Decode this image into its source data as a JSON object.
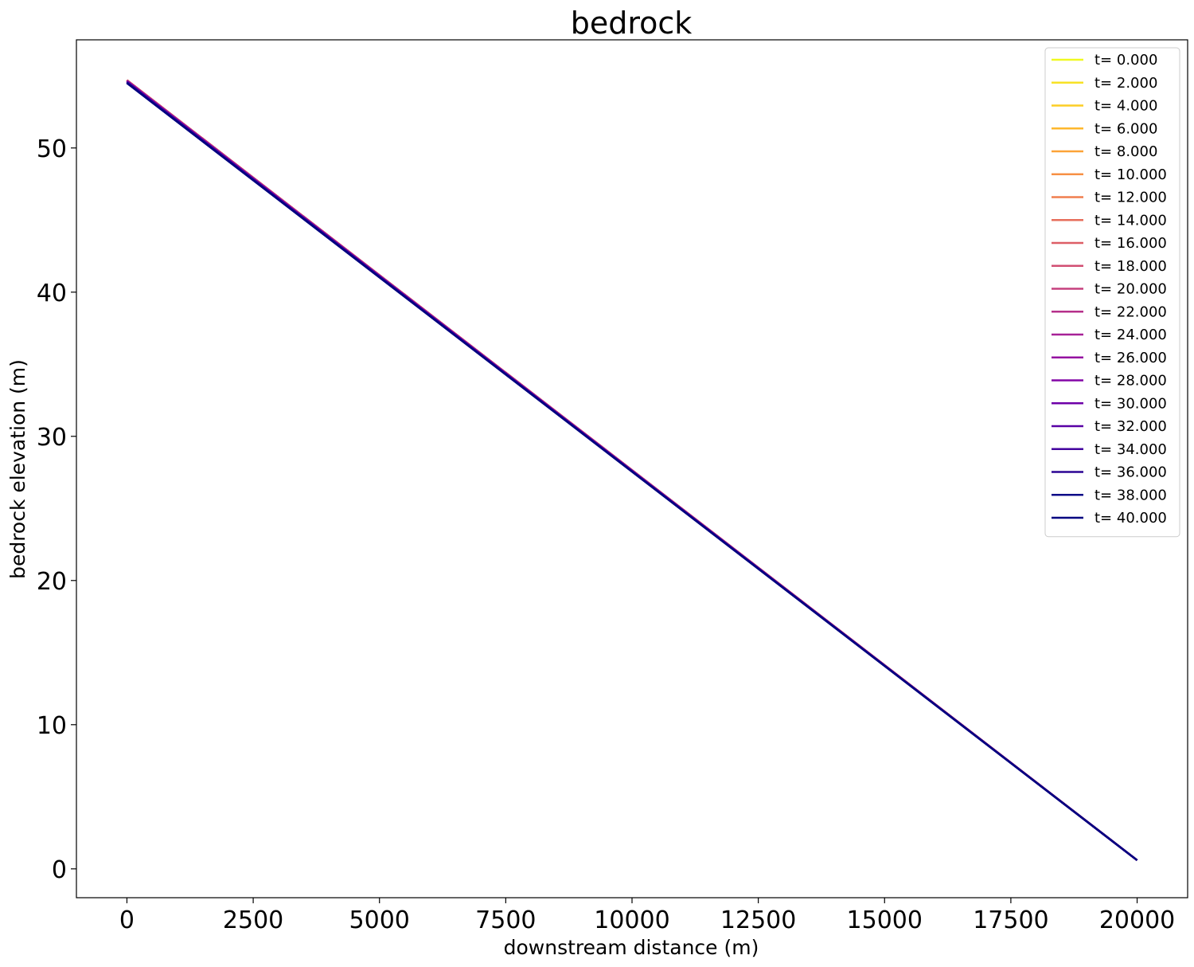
{
  "chart_data": {
    "type": "line",
    "title": "bedrock",
    "xlabel": "downstream distance (m)",
    "ylabel": "bedrock elevation (m)",
    "xlim": [
      -1000,
      21000
    ],
    "ylim": [
      -2,
      57.5
    ],
    "xticks": [
      0,
      2500,
      5000,
      7500,
      10000,
      12500,
      15000,
      17500,
      20000
    ],
    "xtick_labels": [
      "0",
      "2500",
      "5000",
      "7500",
      "10000",
      "12500",
      "15000",
      "17500",
      "20000"
    ],
    "yticks": [
      0,
      10,
      20,
      30,
      40,
      50
    ],
    "ytick_labels": [
      "0",
      "10",
      "20",
      "30",
      "40",
      "50"
    ],
    "grid": false,
    "legend_position": "top-right",
    "colormap": "plasma",
    "series": [
      {
        "name": "t= 0.000",
        "color": "#f0f921",
        "x": [
          0,
          20000
        ],
        "y": [
          54.7,
          0.6
        ]
      },
      {
        "name": "t= 2.000",
        "color": "#f7e225",
        "x": [
          0,
          20000
        ],
        "y": [
          54.7,
          0.6
        ]
      },
      {
        "name": "t= 4.000",
        "color": "#fccd25",
        "x": [
          0,
          20000
        ],
        "y": [
          54.7,
          0.6
        ]
      },
      {
        "name": "t= 6.000",
        "color": "#feb72d",
        "x": [
          0,
          20000
        ],
        "y": [
          54.7,
          0.6
        ]
      },
      {
        "name": "t= 8.000",
        "color": "#fca338",
        "x": [
          0,
          20000
        ],
        "y": [
          54.7,
          0.6
        ]
      },
      {
        "name": "t= 10.000",
        "color": "#f79044",
        "x": [
          0,
          20000
        ],
        "y": [
          54.7,
          0.6
        ]
      },
      {
        "name": "t= 12.000",
        "color": "#f07f4f",
        "x": [
          0,
          20000
        ],
        "y": [
          54.7,
          0.6
        ]
      },
      {
        "name": "t= 14.000",
        "color": "#e76e5b",
        "x": [
          0,
          20000
        ],
        "y": [
          54.7,
          0.6
        ]
      },
      {
        "name": "t= 16.000",
        "color": "#dd5e66",
        "x": [
          0,
          20000
        ],
        "y": [
          54.7,
          0.6
        ]
      },
      {
        "name": "t= 18.000",
        "color": "#d14e72",
        "x": [
          0,
          20000
        ],
        "y": [
          54.7,
          0.6
        ]
      },
      {
        "name": "t= 20.000",
        "color": "#c5407e",
        "x": [
          0,
          20000
        ],
        "y": [
          54.7,
          0.6
        ]
      },
      {
        "name": "t= 22.000",
        "color": "#b6308b",
        "x": [
          0,
          20000
        ],
        "y": [
          54.65,
          0.6
        ]
      },
      {
        "name": "t= 24.000",
        "color": "#a72197",
        "x": [
          0,
          20000
        ],
        "y": [
          54.65,
          0.6
        ]
      },
      {
        "name": "t= 26.000",
        "color": "#9511a1",
        "x": [
          0,
          20000
        ],
        "y": [
          54.65,
          0.6
        ]
      },
      {
        "name": "t= 28.000",
        "color": "#8305a7",
        "x": [
          0,
          20000
        ],
        "y": [
          54.6,
          0.6
        ]
      },
      {
        "name": "t= 30.000",
        "color": "#6e00a8",
        "x": [
          0,
          20000
        ],
        "y": [
          54.6,
          0.6
        ]
      },
      {
        "name": "t= 32.000",
        "color": "#5901a5",
        "x": [
          0,
          20000
        ],
        "y": [
          54.6,
          0.6
        ]
      },
      {
        "name": "t= 34.000",
        "color": "#43039e",
        "x": [
          0,
          20000
        ],
        "y": [
          54.55,
          0.6
        ]
      },
      {
        "name": "t= 36.000",
        "color": "#2c0594",
        "x": [
          0,
          20000
        ],
        "y": [
          54.55,
          0.6
        ]
      },
      {
        "name": "t= 38.000",
        "color": "#0d0887",
        "x": [
          0,
          20000
        ],
        "y": [
          54.5,
          0.6
        ]
      },
      {
        "name": "t= 40.000",
        "color": "#000080",
        "x": [
          0,
          20000
        ],
        "y": [
          54.5,
          0.6
        ]
      }
    ]
  }
}
